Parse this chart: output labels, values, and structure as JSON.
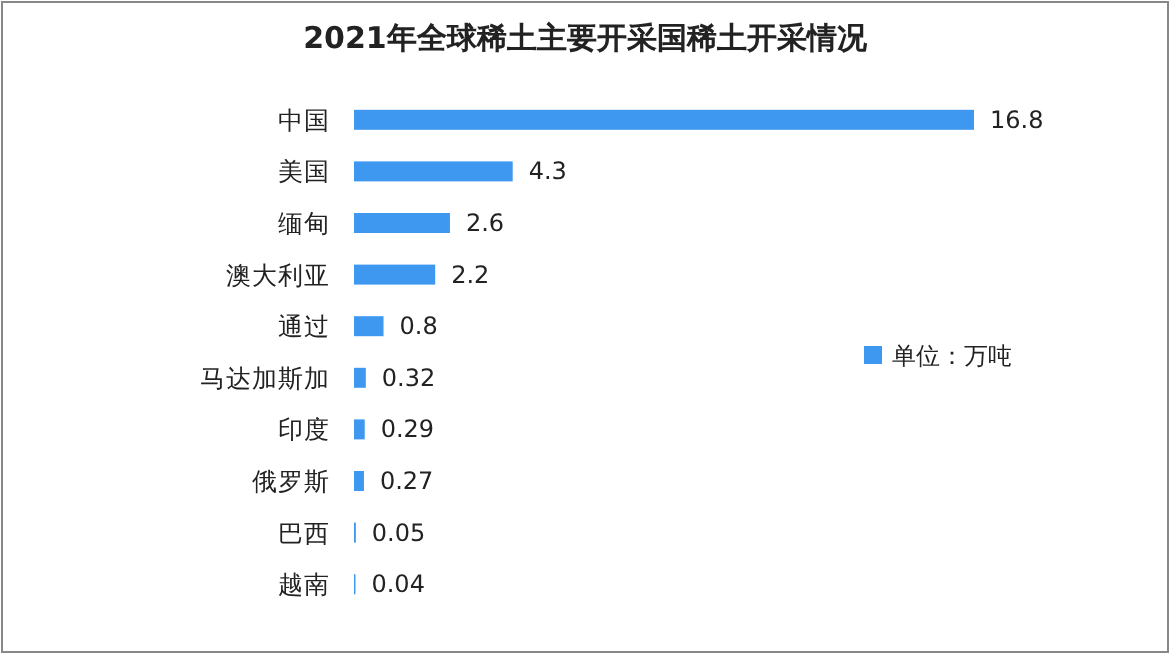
{
  "chart_data": {
    "type": "bar",
    "orientation": "horizontal",
    "title": "2021年全球稀土主要开采国稀土开采情况",
    "categories": [
      "中国",
      "美国",
      "缅甸",
      "澳大利亚",
      "通过",
      "马达加斯加",
      "印度",
      "俄罗斯",
      "巴西",
      "越南"
    ],
    "series": [
      {
        "name": "单位：万吨",
        "color": "#3f98f0",
        "values": [
          16.8,
          4.3,
          2.6,
          2.2,
          0.8,
          0.32,
          0.29,
          0.27,
          0.05,
          0.04
        ]
      }
    ],
    "data_labels": true,
    "legend": "right"
  }
}
